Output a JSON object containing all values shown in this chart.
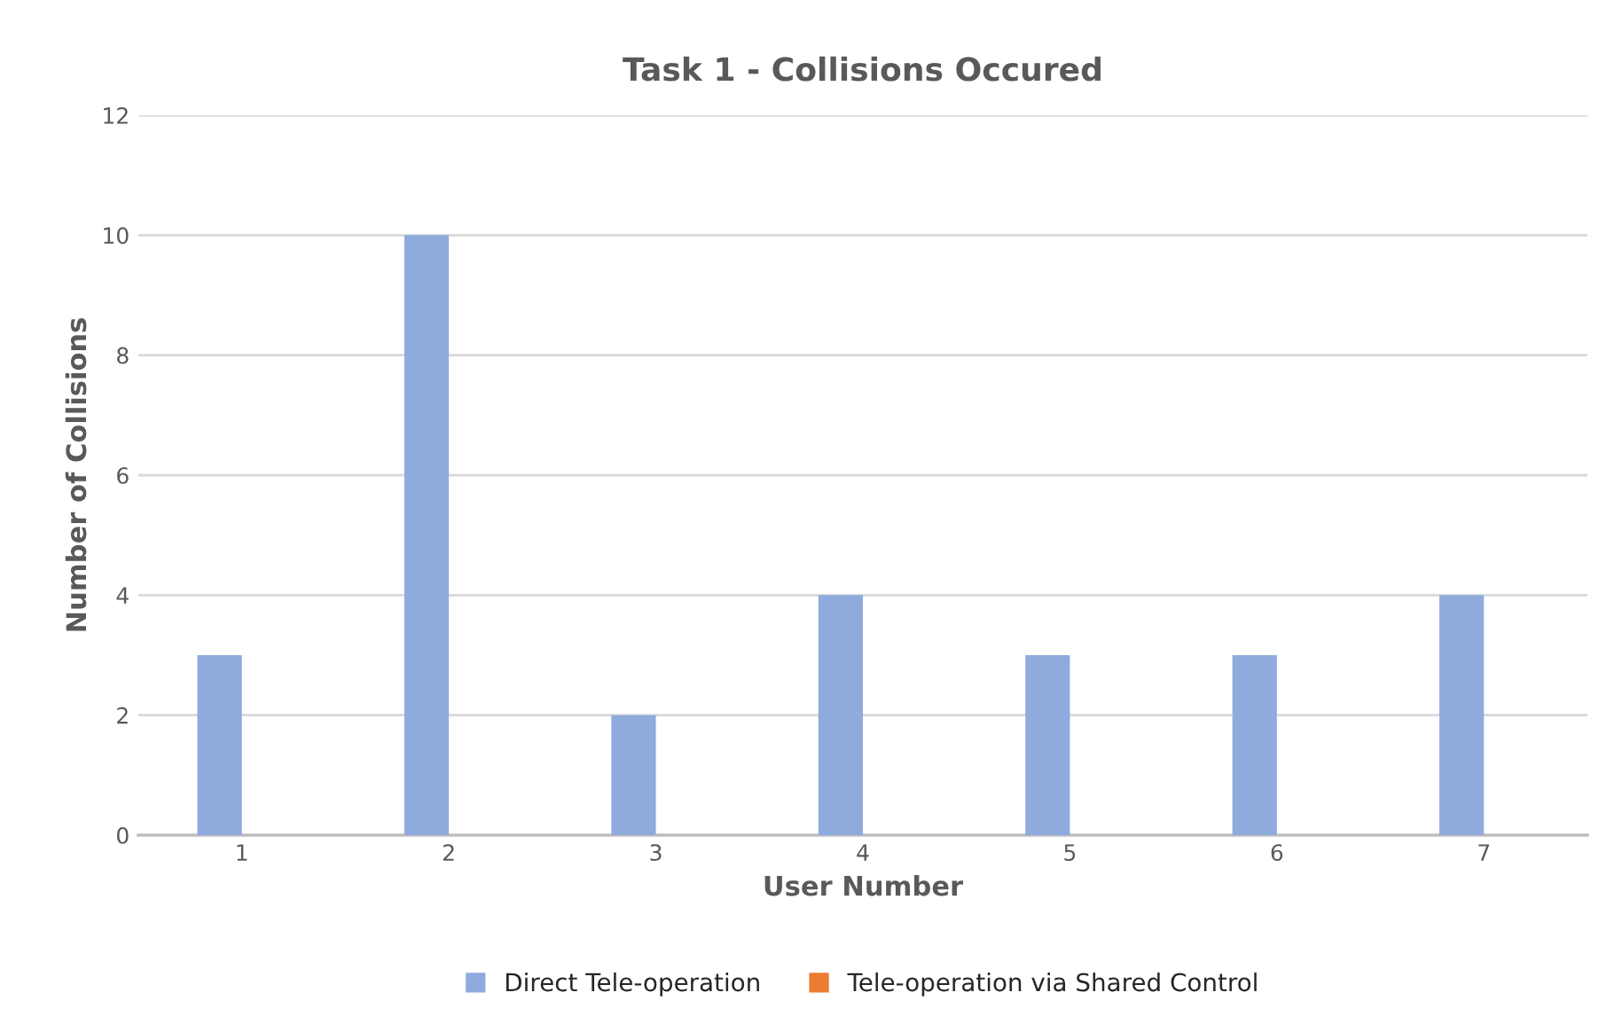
{
  "chart_data": {
    "type": "bar",
    "title": "Task 1 - Collisions Occured",
    "xlabel": "User Number",
    "ylabel": "Number of Collisions",
    "categories": [
      "1",
      "2",
      "3",
      "4",
      "5",
      "6",
      "7"
    ],
    "series": [
      {
        "name": "Direct Tele-operation",
        "color": "#8faadc",
        "values": [
          3,
          10,
          2,
          4,
          3,
          3,
          4
        ]
      },
      {
        "name": "Tele-operation via Shared Control",
        "color": "#ed7d31",
        "values": [
          0,
          0,
          0,
          0,
          0,
          0,
          0
        ]
      }
    ],
    "ylim": [
      0,
      12
    ],
    "yticks": [
      0,
      2,
      4,
      6,
      8,
      10,
      12
    ],
    "grid": "y",
    "legend": "bottom"
  }
}
